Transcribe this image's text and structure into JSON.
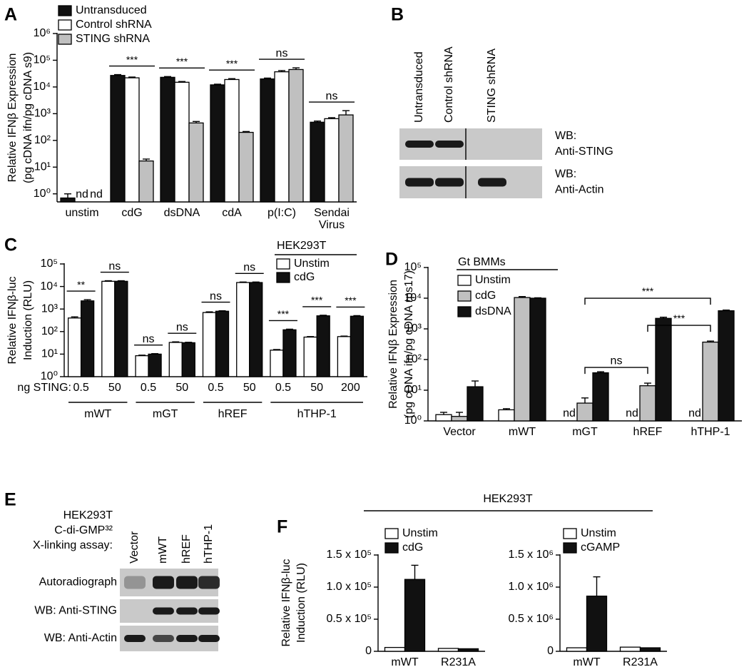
{
  "chart_data": [
    {
      "panel": "A",
      "type": "bar",
      "log_scale": true,
      "ylabel": [
        "Relative IFNβ Expression",
        "(pg cDNA ifn/pg cDNA s9)"
      ],
      "categories": [
        "unstim",
        "cdG",
        "dsDNA",
        "cdA",
        "p(I:C)",
        "Sendai Virus"
      ],
      "series": [
        {
          "name": "Untransduced",
          "color": "#111111",
          "values": [
            0.7,
            27000,
            23000,
            12000,
            20000,
            480
          ],
          "errors": [
            0.3,
            2000,
            1500,
            700,
            1500,
            50
          ]
        },
        {
          "name": "Control shRNA",
          "color": "#ffffff",
          "values": [
            null,
            22000,
            15000,
            19000,
            37000,
            650
          ],
          "errors": [
            null,
            1500,
            1000,
            1500,
            4000,
            60
          ],
          "value_labels": [
            "nd",
            null,
            null,
            null,
            null,
            null
          ]
        },
        {
          "name": "STING shRNA",
          "color": "#c0c0c0",
          "values": [
            null,
            17,
            450,
            200,
            45000,
            900
          ],
          "errors": [
            null,
            3,
            60,
            15,
            7000,
            400
          ],
          "value_labels": [
            "nd",
            null,
            null,
            null,
            null,
            null
          ]
        }
      ],
      "annotations": [
        null,
        "***",
        "***",
        "***",
        "ns",
        "ns"
      ],
      "ylim": [
        0.5,
        1000000
      ],
      "yticks": [
        {
          "value": 1,
          "label": "10⁰"
        },
        {
          "value": 10,
          "label": "10¹"
        },
        {
          "value": 100,
          "label": "10²"
        },
        {
          "value": 1000,
          "label": "10³"
        },
        {
          "value": 10000,
          "label": "10⁴"
        },
        {
          "value": 100000,
          "label": "10⁵"
        },
        {
          "value": 1000000,
          "label": "10⁶"
        }
      ]
    },
    {
      "panel": "C",
      "type": "bar",
      "log_scale": true,
      "ylabel": [
        "Relative IFNβ-luc",
        "Induction (RLU)"
      ],
      "x_prefix": "ng STING:",
      "categories": [
        "0.5",
        "50",
        "0.5",
        "50",
        "0.5",
        "50",
        "0.5",
        "50",
        "200"
      ],
      "groups": [
        {
          "name": "mWT",
          "size": 2
        },
        {
          "name": "mGT",
          "size": 2
        },
        {
          "name": "hREF",
          "size": 2
        },
        {
          "name": "hTHP-1",
          "size": 3
        }
      ],
      "legend_title": "HEK293T",
      "series": [
        {
          "name": "Unstim",
          "color": "#ffffff",
          "values": [
            400,
            17000,
            8.5,
            33,
            700,
            15000,
            15,
            57,
            60
          ],
          "errors": [
            50,
            1000,
            0.5,
            2,
            50,
            800,
            1,
            3,
            3
          ]
        },
        {
          "name": "cdG",
          "color": "#111111",
          "values": [
            2300,
            17000,
            10,
            32,
            800,
            15000,
            120,
            500,
            480
          ],
          "errors": [
            300,
            1000,
            0.5,
            1.5,
            40,
            800,
            8,
            30,
            30
          ]
        }
      ],
      "annotations": [
        "**",
        "ns",
        "ns",
        "ns",
        "ns",
        "ns",
        "***",
        "***",
        "***"
      ],
      "ylim": [
        1,
        100000
      ],
      "yticks": [
        {
          "value": 1,
          "label": "10⁰"
        },
        {
          "value": 10,
          "label": "10¹"
        },
        {
          "value": 100,
          "label": "10²"
        },
        {
          "value": 1000,
          "label": "10³"
        },
        {
          "value": 10000,
          "label": "10⁴"
        },
        {
          "value": 100000,
          "label": "10⁵"
        }
      ]
    },
    {
      "panel": "D",
      "type": "bar",
      "log_scale": true,
      "ylabel": [
        "Relative IFNβ Expression",
        "(pg cDNA ifn/pg cDNA rps17)"
      ],
      "categories": [
        "Vector",
        "mWT",
        "mGT",
        "hREF",
        "hTHP-1"
      ],
      "legend_title": "Gt BMMs",
      "series": [
        {
          "name": "Unstim",
          "color": "#ffffff",
          "values": [
            1.6,
            2.3,
            null,
            null,
            null
          ],
          "errors": [
            0.3,
            0.2,
            null,
            null,
            null
          ],
          "value_labels": [
            null,
            null,
            "nd",
            "nd",
            "nd"
          ]
        },
        {
          "name": "cdG",
          "color": "#c0c0c0",
          "values": [
            1.4,
            10500,
            3.8,
            14,
            370
          ],
          "errors": [
            0.5,
            800,
            1.8,
            3,
            30
          ]
        },
        {
          "name": "dsDNA",
          "color": "#111111",
          "values": [
            13,
            10000,
            37,
            2200,
            3900
          ],
          "errors": [
            7,
            300,
            3,
            200,
            200
          ]
        }
      ],
      "comparisons": [
        {
          "from": 2,
          "to": 3,
          "text": "ns"
        },
        {
          "from": 3,
          "to": 4,
          "text": "***"
        },
        {
          "from": 2,
          "to": 4,
          "text": "***"
        }
      ],
      "ylim": [
        1,
        100000
      ],
      "yticks": [
        {
          "value": 1,
          "label": "10⁰"
        },
        {
          "value": 10,
          "label": "10¹"
        },
        {
          "value": 100,
          "label": "10²"
        },
        {
          "value": 1000,
          "label": "10³"
        },
        {
          "value": 10000,
          "label": "10⁴"
        },
        {
          "value": 100000,
          "label": "10⁵"
        }
      ]
    },
    {
      "type": "bar",
      "categories": [
        "mWT",
        "R231A"
      ],
      "series": [
        {
          "name": "Unstim",
          "color": "#ffffff",
          "values": [
            6000,
            4500
          ]
        },
        {
          "name": "cdG",
          "color": "#111111",
          "values": [
            112000,
            4000
          ],
          "errors": [
            22000,
            null
          ]
        }
      ],
      "ylim": [
        0,
        150000
      ],
      "yticks": [
        0,
        {
          "value": 50000,
          "label": "0.5 x 10⁵"
        },
        {
          "value": 100000,
          "label": "1.0 x 10⁵"
        },
        {
          "value": 150000,
          "label": "1.5 x 10⁵"
        }
      ]
    },
    {
      "type": "bar",
      "categories": [
        "mWT",
        "R231A"
      ],
      "series": [
        {
          "name": "Unstim",
          "color": "#ffffff",
          "values": [
            55000,
            65000
          ]
        },
        {
          "name": "cGAMP",
          "color": "#111111",
          "values": [
            860000,
            55000
          ],
          "errors": [
            300000,
            null
          ]
        }
      ],
      "ylim": [
        0,
        1500000
      ],
      "yticks": [
        0,
        {
          "value": 500000,
          "label": "0.5 x 10⁶"
        },
        {
          "value": 1000000,
          "label": "1.0 x 10⁶"
        },
        {
          "value": 1500000,
          "label": "1.5 x 10⁶"
        }
      ]
    }
  ],
  "panel_f": {
    "panel": "F",
    "title": "HEK293T",
    "ylabel": [
      "Relative IFNβ-luc",
      "Induction (RLU)"
    ]
  },
  "blots": [
    {
      "panel": "B",
      "columns": [
        "Untransduced",
        "Control shRNA",
        "STING shRNA"
      ],
      "rows": [
        [
          "WB:",
          "Anti-STING"
        ],
        [
          "WB:",
          "Anti-Actin"
        ]
      ]
    },
    {
      "panel": "E",
      "header": [
        "HEK293T",
        "C-di-GMP³²",
        "X-linking assay:"
      ],
      "columns": [
        "Vector",
        "mWT",
        "hREF",
        "hTHP-1"
      ],
      "rows": [
        "Autoradiograph",
        "WB: Anti-STING",
        "WB: Anti-Actin"
      ]
    }
  ]
}
